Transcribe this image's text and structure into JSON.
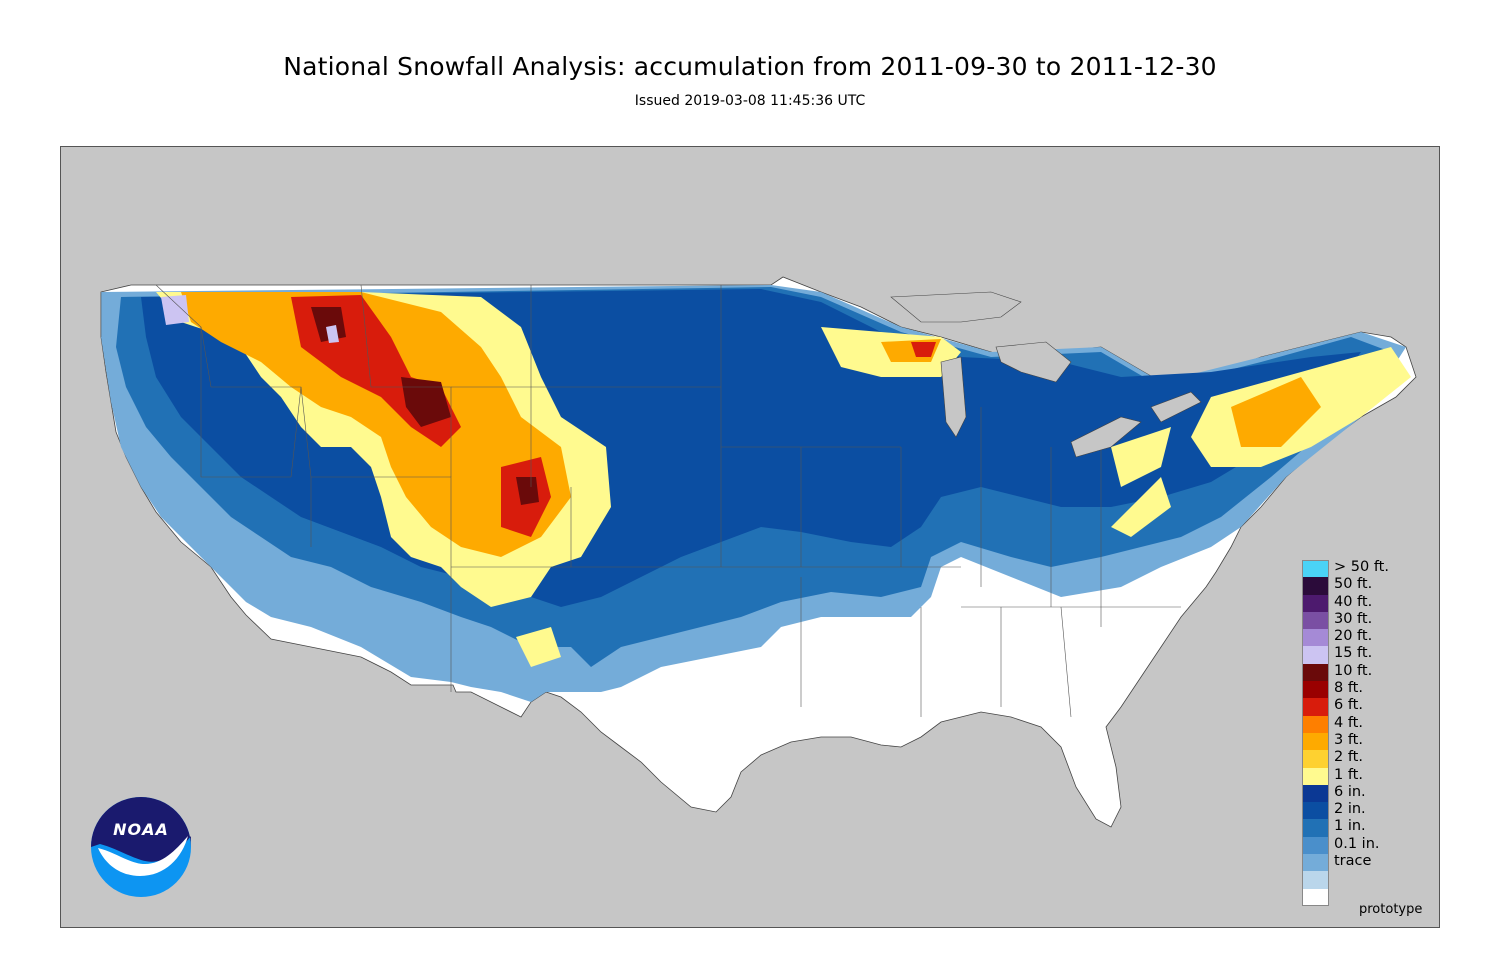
{
  "title": "National Snowfall Analysis: accumulation from 2011-09-30 to 2011-12-30",
  "subtitle": "Issued 2019-03-08 11:45:36 UTC",
  "watermark": "prototype",
  "logo_text": "NOAA",
  "colors": {
    "background_land": "#c6c6c6",
    "no_snow": "#ffffff",
    "boundary_line": "#555555"
  },
  "legend": [
    {
      "label": "> 50 ft.",
      "color": "#4ad3f6"
    },
    {
      "label": "50 ft.",
      "color": "#2b0b3a"
    },
    {
      "label": "40 ft.",
      "color": "#4d1a6e"
    },
    {
      "label": "30 ft.",
      "color": "#7a4fa3"
    },
    {
      "label": "20 ft.",
      "color": "#a58ad6"
    },
    {
      "label": "15 ft.",
      "color": "#ccc4f2"
    },
    {
      "label": "10 ft.",
      "color": "#6a0a0a"
    },
    {
      "label": "8 ft.",
      "color": "#9a0000"
    },
    {
      "label": "6 ft.",
      "color": "#d81c0c"
    },
    {
      "label": "4 ft.",
      "color": "#fe7f00"
    },
    {
      "label": "3 ft.",
      "color": "#feaa00"
    },
    {
      "label": "2 ft.",
      "color": "#fed130"
    },
    {
      "label": "1 ft.",
      "color": "#fffa8f"
    },
    {
      "label": "6 in.",
      "color": "#0b3894"
    },
    {
      "label": "2 in.",
      "color": "#0b4ea2"
    },
    {
      "label": "1 in.",
      "color": "#2171b5"
    },
    {
      "label": "0.1 in.",
      "color": "#4a8fcb"
    },
    {
      "label": "trace",
      "color": "#74acd9"
    }
  ],
  "legend_tail_color": "#bad6eb",
  "legend_end_color": "#ffffff"
}
